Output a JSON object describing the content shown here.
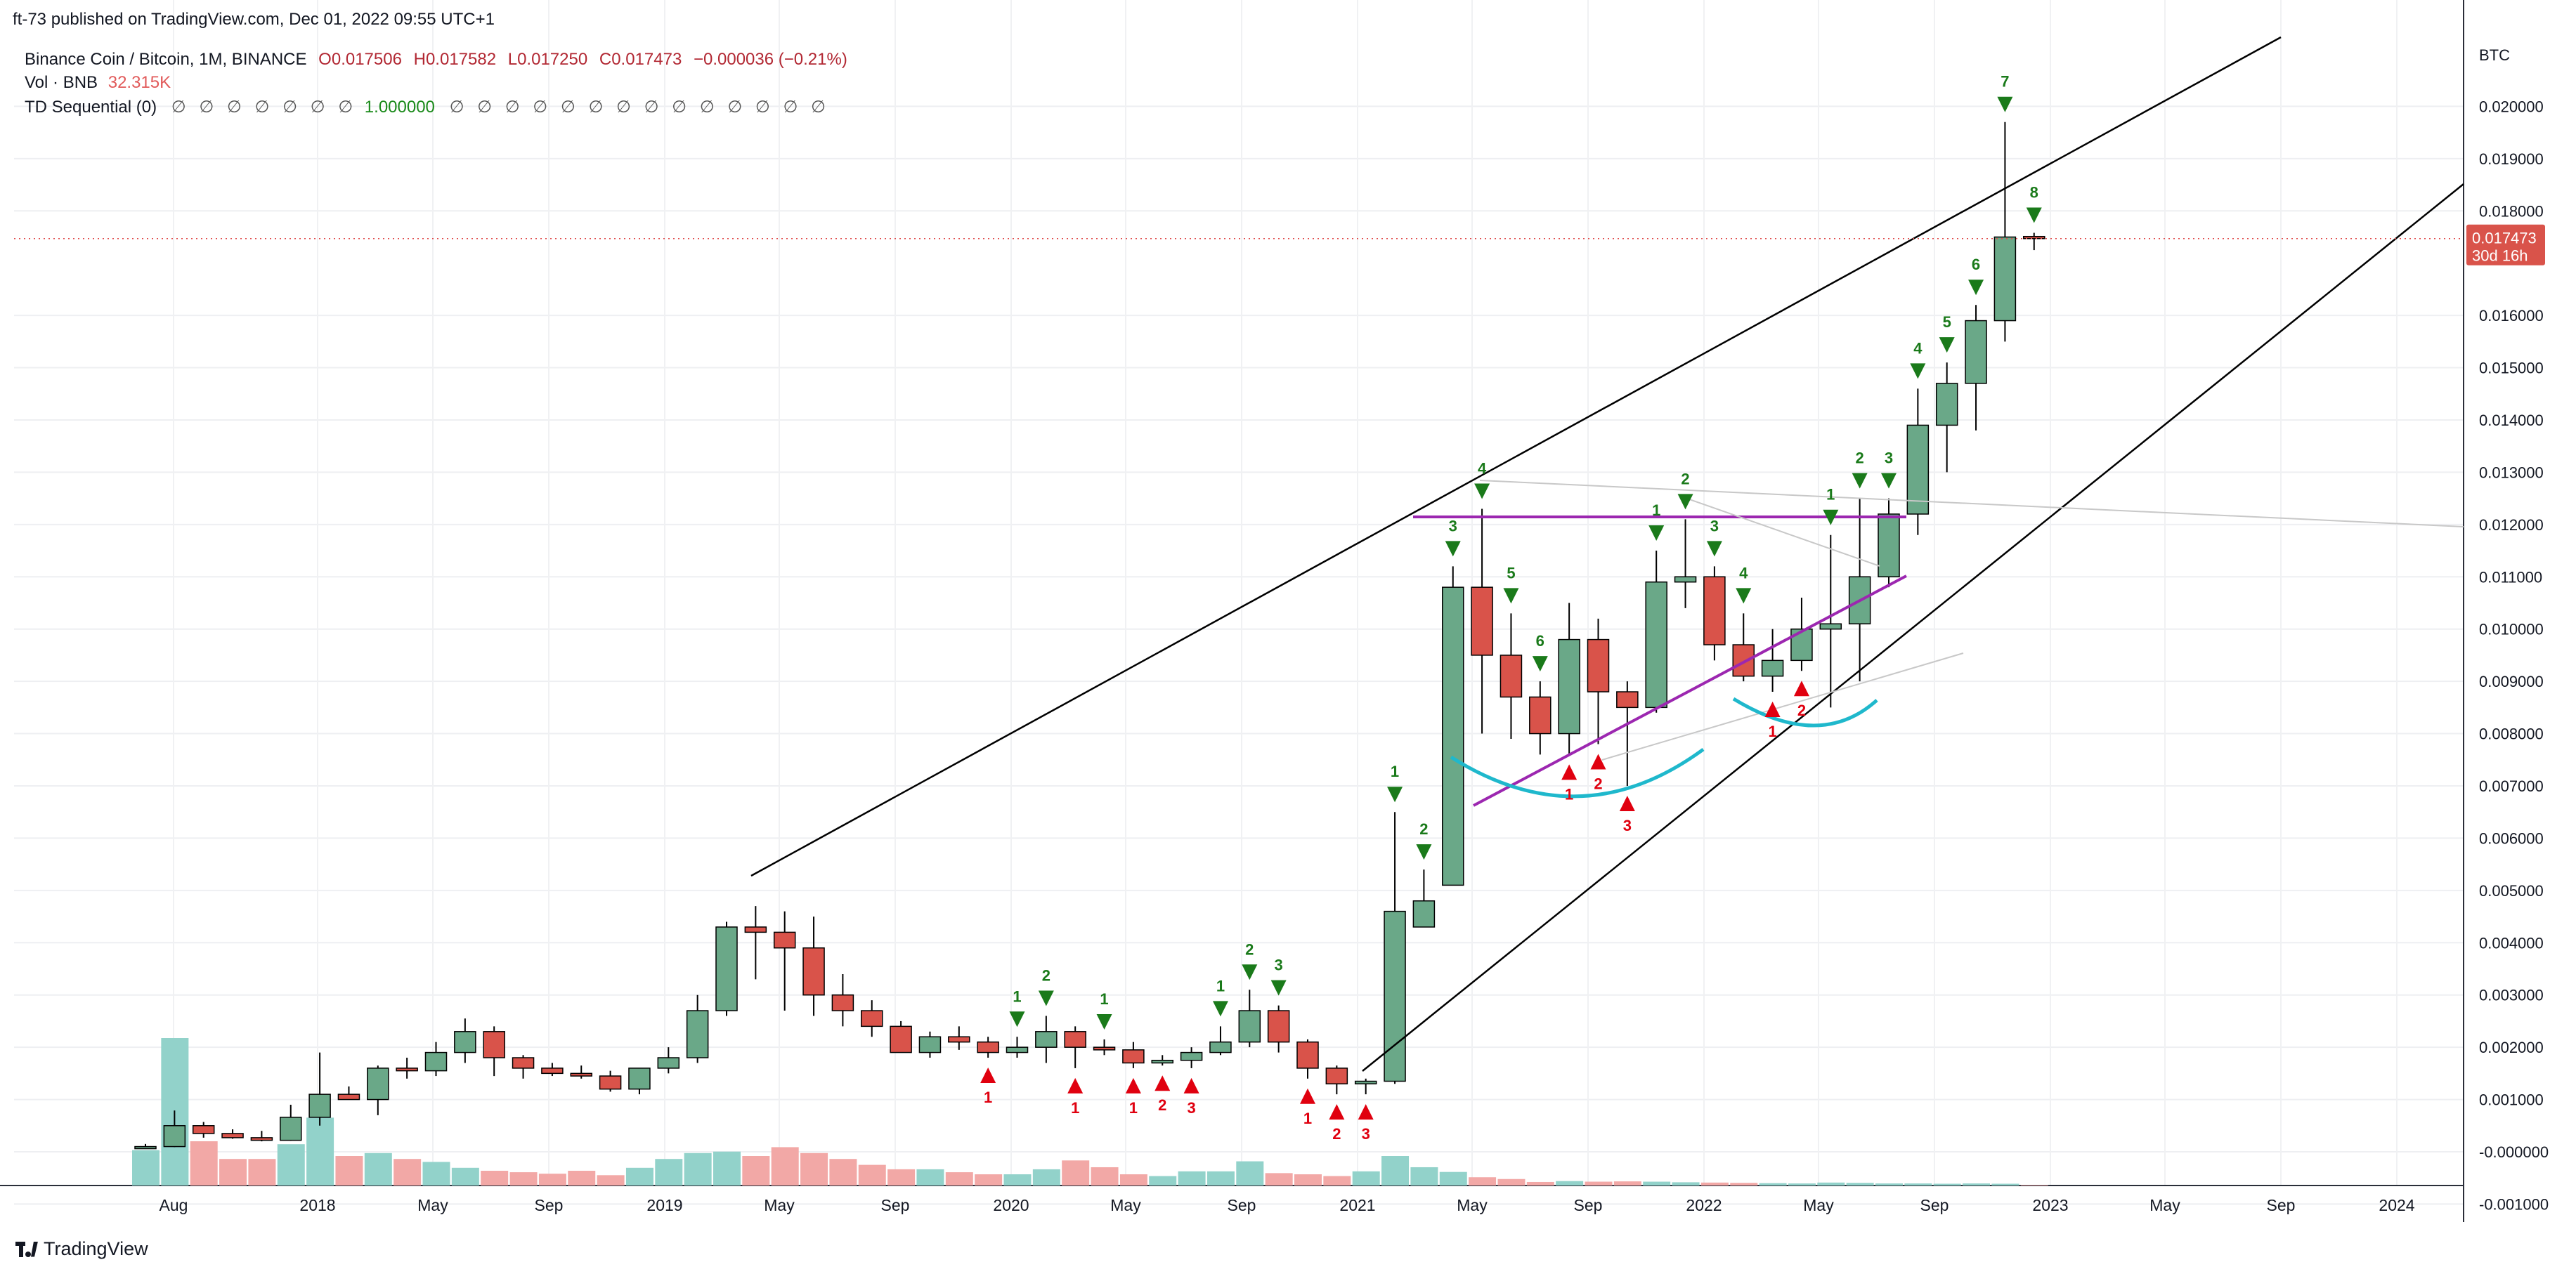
{
  "publish_line": "ft-73 published on TradingView.com, Dec 01, 2022 09:55 UTC+1",
  "legend": {
    "symbol_line": "Binance Coin / Bitcoin, 1M, BINANCE",
    "open": "O0.017506",
    "high": "H0.017582",
    "low": "L0.017250",
    "close": "C0.017473",
    "change": "−0.000036 (−0.21%)",
    "vol_label": "Vol · BNB",
    "vol_value": "32.315K",
    "td_label": "TD Sequential (0)",
    "td_values_before": "∅ ∅ ∅ ∅ ∅ ∅ ∅",
    "td_highlight": "1.000000",
    "td_values_after": "∅ ∅ ∅ ∅ ∅ ∅ ∅ ∅ ∅ ∅ ∅ ∅ ∅ ∅"
  },
  "price_axis": {
    "unit": "BTC",
    "current_price": "0.017473",
    "countdown": "30d 16h"
  },
  "footer": {
    "brand": "TradingView"
  },
  "colors": {
    "up": "#6aa888",
    "down": "#d9534a",
    "vol_up": "#92d2ca",
    "vol_down": "#f2a8a6",
    "td_buy": "#e0000f",
    "td_sell": "#1a7a1a",
    "trendline": "#000000",
    "purple": "#9c27b0",
    "cyan": "#1fb8cc",
    "grey": "#c8c8c8"
  },
  "chart_data": {
    "type": "candlestick",
    "symbol": "BNB/BTC",
    "interval": "1M",
    "ylim": [
      -0.001,
      0.0205
    ],
    "y_ticks": [
      "0.020000",
      "0.019000",
      "0.018000",
      "0.016000",
      "0.015000",
      "0.014000",
      "0.013000",
      "0.012000",
      "0.011000",
      "0.010000",
      "0.009000",
      "0.008000",
      "0.007000",
      "0.006000",
      "0.005000",
      "0.004000",
      "0.003000",
      "0.002000",
      "0.001000",
      "-0.000000",
      "-0.001000"
    ],
    "x_ticks": [
      "Aug",
      "2018",
      "May",
      "Sep",
      "2019",
      "May",
      "Sep",
      "2020",
      "May",
      "Sep",
      "2021",
      "May",
      "Sep",
      "2022",
      "May",
      "Sep",
      "2023",
      "May",
      "Sep",
      "2024"
    ],
    "candles": [
      [
        "2017-07",
        0.0001,
        0.00015,
        8e-05,
        0.0001,
        1.2
      ],
      [
        "2017-08",
        0.0001,
        0.00079,
        9e-05,
        0.0005,
        5.0
      ],
      [
        "2017-09",
        0.0005,
        0.00057,
        0.00027,
        0.00035,
        1.5
      ],
      [
        "2017-10",
        0.00035,
        0.00043,
        0.00025,
        0.00027,
        0.9
      ],
      [
        "2017-11",
        0.00027,
        0.0004,
        0.0002,
        0.00022,
        0.9
      ],
      [
        "2017-12",
        0.00022,
        0.0009,
        0.00021,
        0.00066,
        1.4
      ],
      [
        "2018-01",
        0.00066,
        0.0019,
        0.0005,
        0.0011,
        2.3
      ],
      [
        "2018-02",
        0.0011,
        0.00125,
        0.001,
        0.001,
        1.0
      ],
      [
        "2018-03",
        0.001,
        0.00165,
        0.0007,
        0.0016,
        1.1
      ],
      [
        "2018-04",
        0.0016,
        0.0018,
        0.0014,
        0.00155,
        0.9
      ],
      [
        "2018-05",
        0.00155,
        0.0021,
        0.00145,
        0.0019,
        0.8
      ],
      [
        "2018-06",
        0.0019,
        0.00255,
        0.0017,
        0.0023,
        0.6
      ],
      [
        "2018-07",
        0.0023,
        0.0024,
        0.00145,
        0.0018,
        0.5
      ],
      [
        "2018-08",
        0.0018,
        0.00185,
        0.0014,
        0.0016,
        0.45
      ],
      [
        "2018-09",
        0.0016,
        0.0017,
        0.00145,
        0.0015,
        0.4
      ],
      [
        "2018-10",
        0.0015,
        0.00165,
        0.0014,
        0.00145,
        0.5
      ],
      [
        "2018-11",
        0.00145,
        0.00155,
        0.00115,
        0.0012,
        0.35
      ],
      [
        "2018-12",
        0.0012,
        0.0016,
        0.0011,
        0.0016,
        0.6
      ],
      [
        "2019-01",
        0.0016,
        0.002,
        0.0015,
        0.0018,
        0.9
      ],
      [
        "2019-02",
        0.0018,
        0.003,
        0.0017,
        0.0027,
        1.1
      ],
      [
        "2019-03",
        0.0027,
        0.0044,
        0.0026,
        0.0043,
        1.15
      ],
      [
        "2019-04",
        0.0043,
        0.0047,
        0.0033,
        0.0042,
        1.0
      ],
      [
        "2019-05",
        0.0042,
        0.0046,
        0.0027,
        0.0039,
        1.3
      ],
      [
        "2019-06",
        0.0039,
        0.0045,
        0.0026,
        0.003,
        1.1
      ],
      [
        "2019-07",
        0.003,
        0.0034,
        0.0024,
        0.0027,
        0.9
      ],
      [
        "2019-08",
        0.0027,
        0.0029,
        0.0022,
        0.0024,
        0.7
      ],
      [
        "2019-09",
        0.0024,
        0.0025,
        0.0019,
        0.0019,
        0.55
      ],
      [
        "2019-10",
        0.0019,
        0.0023,
        0.0018,
        0.0022,
        0.55
      ],
      [
        "2019-11",
        0.0022,
        0.0024,
        0.00195,
        0.0021,
        0.45
      ],
      [
        "2019-12",
        0.0021,
        0.0022,
        0.0018,
        0.0019,
        0.38
      ],
      [
        "2020-01",
        0.0019,
        0.0022,
        0.0018,
        0.002,
        0.38
      ],
      [
        "2020-02",
        0.002,
        0.0026,
        0.0017,
        0.0023,
        0.55
      ],
      [
        "2020-03",
        0.0023,
        0.0024,
        0.0016,
        0.002,
        0.85
      ],
      [
        "2020-04",
        0.002,
        0.00215,
        0.00185,
        0.00195,
        0.62
      ],
      [
        "2020-05",
        0.00195,
        0.0021,
        0.0016,
        0.0017,
        0.38
      ],
      [
        "2020-06",
        0.0017,
        0.00185,
        0.00165,
        0.00175,
        0.32
      ],
      [
        "2020-07",
        0.00175,
        0.002,
        0.0016,
        0.0019,
        0.48
      ],
      [
        "2020-08",
        0.0019,
        0.0024,
        0.00185,
        0.0021,
        0.48
      ],
      [
        "2020-09",
        0.0021,
        0.0031,
        0.002,
        0.0027,
        0.82
      ],
      [
        "2020-10",
        0.0027,
        0.0028,
        0.0019,
        0.0021,
        0.42
      ],
      [
        "2020-11",
        0.0021,
        0.00215,
        0.0014,
        0.0016,
        0.38
      ],
      [
        "2020-12",
        0.0016,
        0.00165,
        0.0011,
        0.0013,
        0.32
      ],
      [
        "2021-01",
        0.0013,
        0.0014,
        0.0011,
        0.00135,
        0.48
      ],
      [
        "2021-02",
        0.00135,
        0.0065,
        0.0013,
        0.0046,
        1.0
      ],
      [
        "2021-03",
        0.0043,
        0.0054,
        0.0043,
        0.0048,
        0.62
      ],
      [
        "2021-04",
        0.0051,
        0.0112,
        0.0051,
        0.0108,
        0.46
      ],
      [
        "2021-05",
        0.0108,
        0.0123,
        0.008,
        0.0095,
        0.28
      ],
      [
        "2021-06",
        0.0095,
        0.0103,
        0.0079,
        0.0087,
        0.22
      ],
      [
        "2021-07",
        0.0087,
        0.009,
        0.0076,
        0.008,
        0.12
      ],
      [
        "2021-08",
        0.008,
        0.0105,
        0.0076,
        0.0098,
        0.15
      ],
      [
        "2021-09",
        0.0098,
        0.0102,
        0.0078,
        0.0088,
        0.13
      ],
      [
        "2021-10",
        0.0088,
        0.009,
        0.007,
        0.0085,
        0.14
      ],
      [
        "2021-11",
        0.0085,
        0.0115,
        0.0084,
        0.0109,
        0.13
      ],
      [
        "2021-12",
        0.0109,
        0.0121,
        0.0104,
        0.011,
        0.11
      ],
      [
        "2022-01",
        0.011,
        0.0112,
        0.0094,
        0.0097,
        0.1
      ],
      [
        "2022-02",
        0.0097,
        0.0103,
        0.009,
        0.0091,
        0.09
      ],
      [
        "2022-03",
        0.0091,
        0.01,
        0.0088,
        0.0094,
        0.08
      ],
      [
        "2022-04",
        0.0094,
        0.0106,
        0.0092,
        0.01,
        0.07
      ],
      [
        "2022-05",
        0.01,
        0.0118,
        0.0085,
        0.0101,
        0.1
      ],
      [
        "2022-06",
        0.0101,
        0.0125,
        0.009,
        0.011,
        0.09
      ],
      [
        "2022-07",
        0.011,
        0.0125,
        0.0108,
        0.0122,
        0.07
      ],
      [
        "2022-08",
        0.0122,
        0.0146,
        0.0118,
        0.0139,
        0.07
      ],
      [
        "2022-09",
        0.0139,
        0.0151,
        0.013,
        0.0147,
        0.06
      ],
      [
        "2022-10",
        0.0147,
        0.0162,
        0.0138,
        0.0159,
        0.07
      ],
      [
        "2022-11",
        0.0159,
        0.0197,
        0.0155,
        0.0175,
        0.06
      ],
      [
        "2022-12",
        0.01751,
        0.01758,
        0.01725,
        0.01747,
        0.02
      ]
    ],
    "td_sequential": [
      [
        "2019-12",
        "buy",
        "1"
      ],
      [
        "2020-01",
        "sell",
        "1"
      ],
      [
        "2020-02",
        "sell",
        "2"
      ],
      [
        "2020-03",
        "buy",
        "1"
      ],
      [
        "2020-04",
        "sell",
        "1"
      ],
      [
        "2020-05",
        "buy",
        "1"
      ],
      [
        "2020-06",
        "buy",
        "2"
      ],
      [
        "2020-07",
        "buy",
        "3"
      ],
      [
        "2020-08",
        "sell",
        "1"
      ],
      [
        "2020-09",
        "sell",
        "2"
      ],
      [
        "2020-10",
        "sell",
        "3"
      ],
      [
        "2020-11",
        "buy",
        "1"
      ],
      [
        "2020-12",
        "buy",
        "2"
      ],
      [
        "2021-01",
        "buy",
        "3"
      ],
      [
        "2021-02",
        "sell",
        "1"
      ],
      [
        "2021-03",
        "sell",
        "2"
      ],
      [
        "2021-04",
        "sell",
        "3"
      ],
      [
        "2021-05",
        "sell",
        "4"
      ],
      [
        "2021-06",
        "sell",
        "5"
      ],
      [
        "2021-07",
        "sell",
        "6"
      ],
      [
        "2021-08",
        "buy",
        "1"
      ],
      [
        "2021-09",
        "buy",
        "2"
      ],
      [
        "2021-10",
        "buy",
        "3"
      ],
      [
        "2021-11",
        "sell",
        "1"
      ],
      [
        "2021-12",
        "sell",
        "2"
      ],
      [
        "2022-01",
        "sell",
        "3"
      ],
      [
        "2022-02",
        "sell",
        "4"
      ],
      [
        "2022-03",
        "buy",
        "1"
      ],
      [
        "2022-04",
        "buy",
        "2"
      ],
      [
        "2022-05",
        "sell",
        "1"
      ],
      [
        "2022-06",
        "sell",
        "2"
      ],
      [
        "2022-07",
        "sell",
        "3"
      ],
      [
        "2022-08",
        "sell",
        "4"
      ],
      [
        "2022-09",
        "sell",
        "5"
      ],
      [
        "2022-10",
        "sell",
        "6"
      ],
      [
        "2022-11",
        "sell",
        "7"
      ],
      [
        "2022-12",
        "sell",
        "8"
      ]
    ]
  }
}
